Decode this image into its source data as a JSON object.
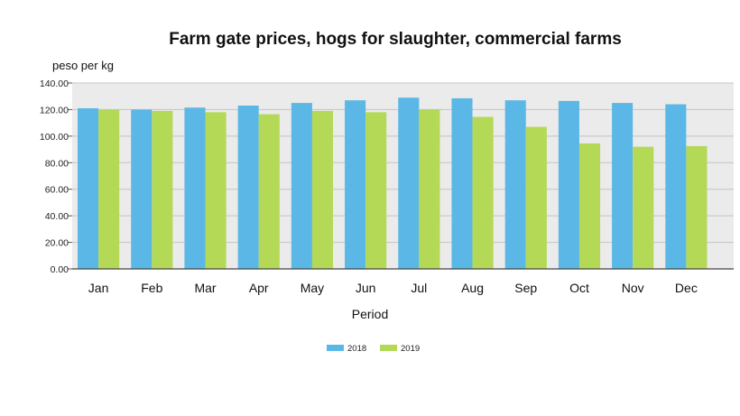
{
  "chart_data": {
    "type": "bar",
    "title": "Farm gate prices, hogs for slaughter, commercial farms",
    "ylabel": "peso per kg",
    "xlabel": "Period",
    "categories": [
      "Jan",
      "Feb",
      "Mar",
      "Apr",
      "May",
      "Jun",
      "Jul",
      "Aug",
      "Sep",
      "Oct",
      "Nov",
      "Dec"
    ],
    "series": [
      {
        "name": "2018",
        "color": "#5bb8e6",
        "values": [
          121,
          120,
          121.5,
          123,
          125,
          127,
          129,
          128.5,
          127,
          126.5,
          125,
          124
        ]
      },
      {
        "name": "2019",
        "color": "#b3d957",
        "values": [
          120,
          119,
          118,
          116.5,
          119,
          118,
          120,
          114.5,
          107,
          94.5,
          92,
          92.5
        ]
      }
    ],
    "ylim": [
      0,
      140
    ],
    "yticks": [
      "0.00",
      "20.00",
      "40.00",
      "60.00",
      "80.00",
      "100.00",
      "120.00",
      "140.00"
    ],
    "grid": true,
    "legend_position": "bottom-center",
    "plot_background": "#ebebeb"
  }
}
